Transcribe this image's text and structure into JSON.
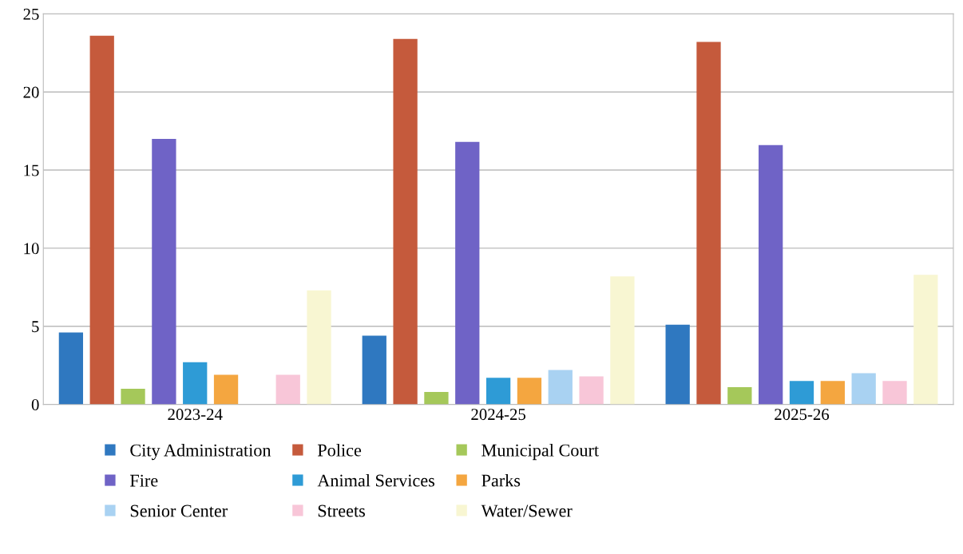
{
  "chart_data": {
    "type": "bar",
    "categories": [
      "2023-24",
      "2024-25",
      "2025-26"
    ],
    "series": [
      {
        "name": "City Administration",
        "color": "#2f78c0",
        "values": [
          4.6,
          4.4,
          5.1
        ]
      },
      {
        "name": "Police",
        "color": "#c55a3c",
        "values": [
          23.6,
          23.4,
          23.2
        ]
      },
      {
        "name": "Municipal Court",
        "color": "#a5c85a",
        "values": [
          1.0,
          0.8,
          1.1
        ]
      },
      {
        "name": "Fire",
        "color": "#6f63c6",
        "values": [
          17.0,
          16.8,
          16.6
        ]
      },
      {
        "name": "Animal Services",
        "color": "#2e9bd6",
        "values": [
          2.7,
          1.7,
          1.5
        ]
      },
      {
        "name": "Parks",
        "color": "#f4a640",
        "values": [
          1.9,
          1.7,
          1.5
        ]
      },
      {
        "name": "Senior Center",
        "color": "#a9d2f2",
        "values": [
          null,
          2.2,
          2.0
        ]
      },
      {
        "name": "Streets",
        "color": "#f8c6d8",
        "values": [
          1.9,
          1.8,
          1.5
        ]
      },
      {
        "name": "Water/Sewer",
        "color": "#f8f6d2",
        "values": [
          7.3,
          8.2,
          8.3
        ]
      }
    ],
    "ylim": [
      0,
      25
    ],
    "yticks": [
      0,
      5,
      10,
      15,
      20,
      25
    ],
    "grid": "y",
    "legend": "bottom"
  }
}
